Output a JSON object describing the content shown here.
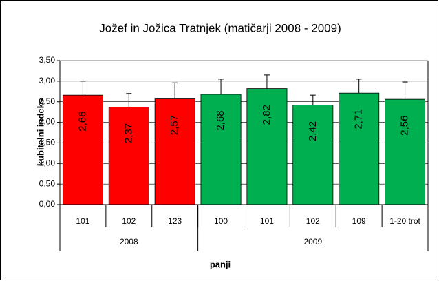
{
  "chart_data": {
    "type": "bar",
    "title": "Jožef in Jožica Tratnjek (matičarji 2008 - 2009)",
    "x_label": "panji",
    "y_label": "kubitalni indeks",
    "categories": [
      "101",
      "102",
      "123",
      "100",
      "101",
      "102",
      "109",
      "1-20 trot"
    ],
    "groups": [
      {
        "label": "2008",
        "size": 3
      },
      {
        "label": "2009",
        "size": 5
      }
    ],
    "values": [
      2.66,
      2.37,
      2.57,
      2.68,
      2.82,
      2.42,
      2.71,
      2.56
    ],
    "value_labels": [
      "2,66",
      "2,37",
      "2,57",
      "2,68",
      "2,82",
      "2,42",
      "2,71",
      "2,56"
    ],
    "errors": [
      0.34,
      0.33,
      0.39,
      0.37,
      0.33,
      0.24,
      0.34,
      0.42
    ],
    "colors": [
      "#ff0000",
      "#ff0000",
      "#ff0000",
      "#00b050",
      "#00b050",
      "#00b050",
      "#00b050",
      "#00b050"
    ],
    "ylim": [
      0,
      3.5
    ],
    "yticks": [
      {
        "value": 0,
        "label": "0,00"
      },
      {
        "value": 0.5,
        "label": "0,50"
      },
      {
        "value": 1,
        "label": "1,00"
      },
      {
        "value": 1.5,
        "label": "1,50"
      },
      {
        "value": 2,
        "label": "2,00"
      },
      {
        "value": 2.5,
        "label": "2,50"
      },
      {
        "value": 3,
        "label": "3,00"
      },
      {
        "value": 3.5,
        "label": "3,50"
      }
    ],
    "grid": true
  }
}
